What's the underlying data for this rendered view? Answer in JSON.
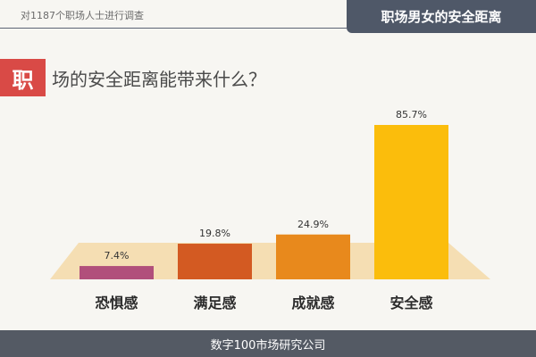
{
  "header": {
    "survey_note": "对1187个职场人士进行调查",
    "title": "职场男女的安全距离"
  },
  "question": {
    "badge": "职",
    "text": "场的安全距离能带来什么？"
  },
  "footer": {
    "source": "数字100市场研究公司"
  },
  "colors": {
    "header_bg": "#4f5868",
    "badge_bg": "#d94a46",
    "platform": "#f5deb3",
    "footer_bg": "#545a64"
  },
  "chart_data": {
    "type": "bar",
    "title": "场的安全距离能带来什么？",
    "categories": [
      "恐惧感",
      "满足感",
      "成就感",
      "安全感"
    ],
    "values": [
      7.4,
      19.8,
      24.9,
      85.7
    ],
    "value_labels": [
      "7.4%",
      "19.8%",
      "24.9%",
      "85.7%"
    ],
    "colors": [
      "#b14f7b",
      "#d35a22",
      "#e8891c",
      "#fbbd0c"
    ],
    "ylim": [
      0,
      100
    ],
    "grid": false,
    "legend": "none"
  }
}
